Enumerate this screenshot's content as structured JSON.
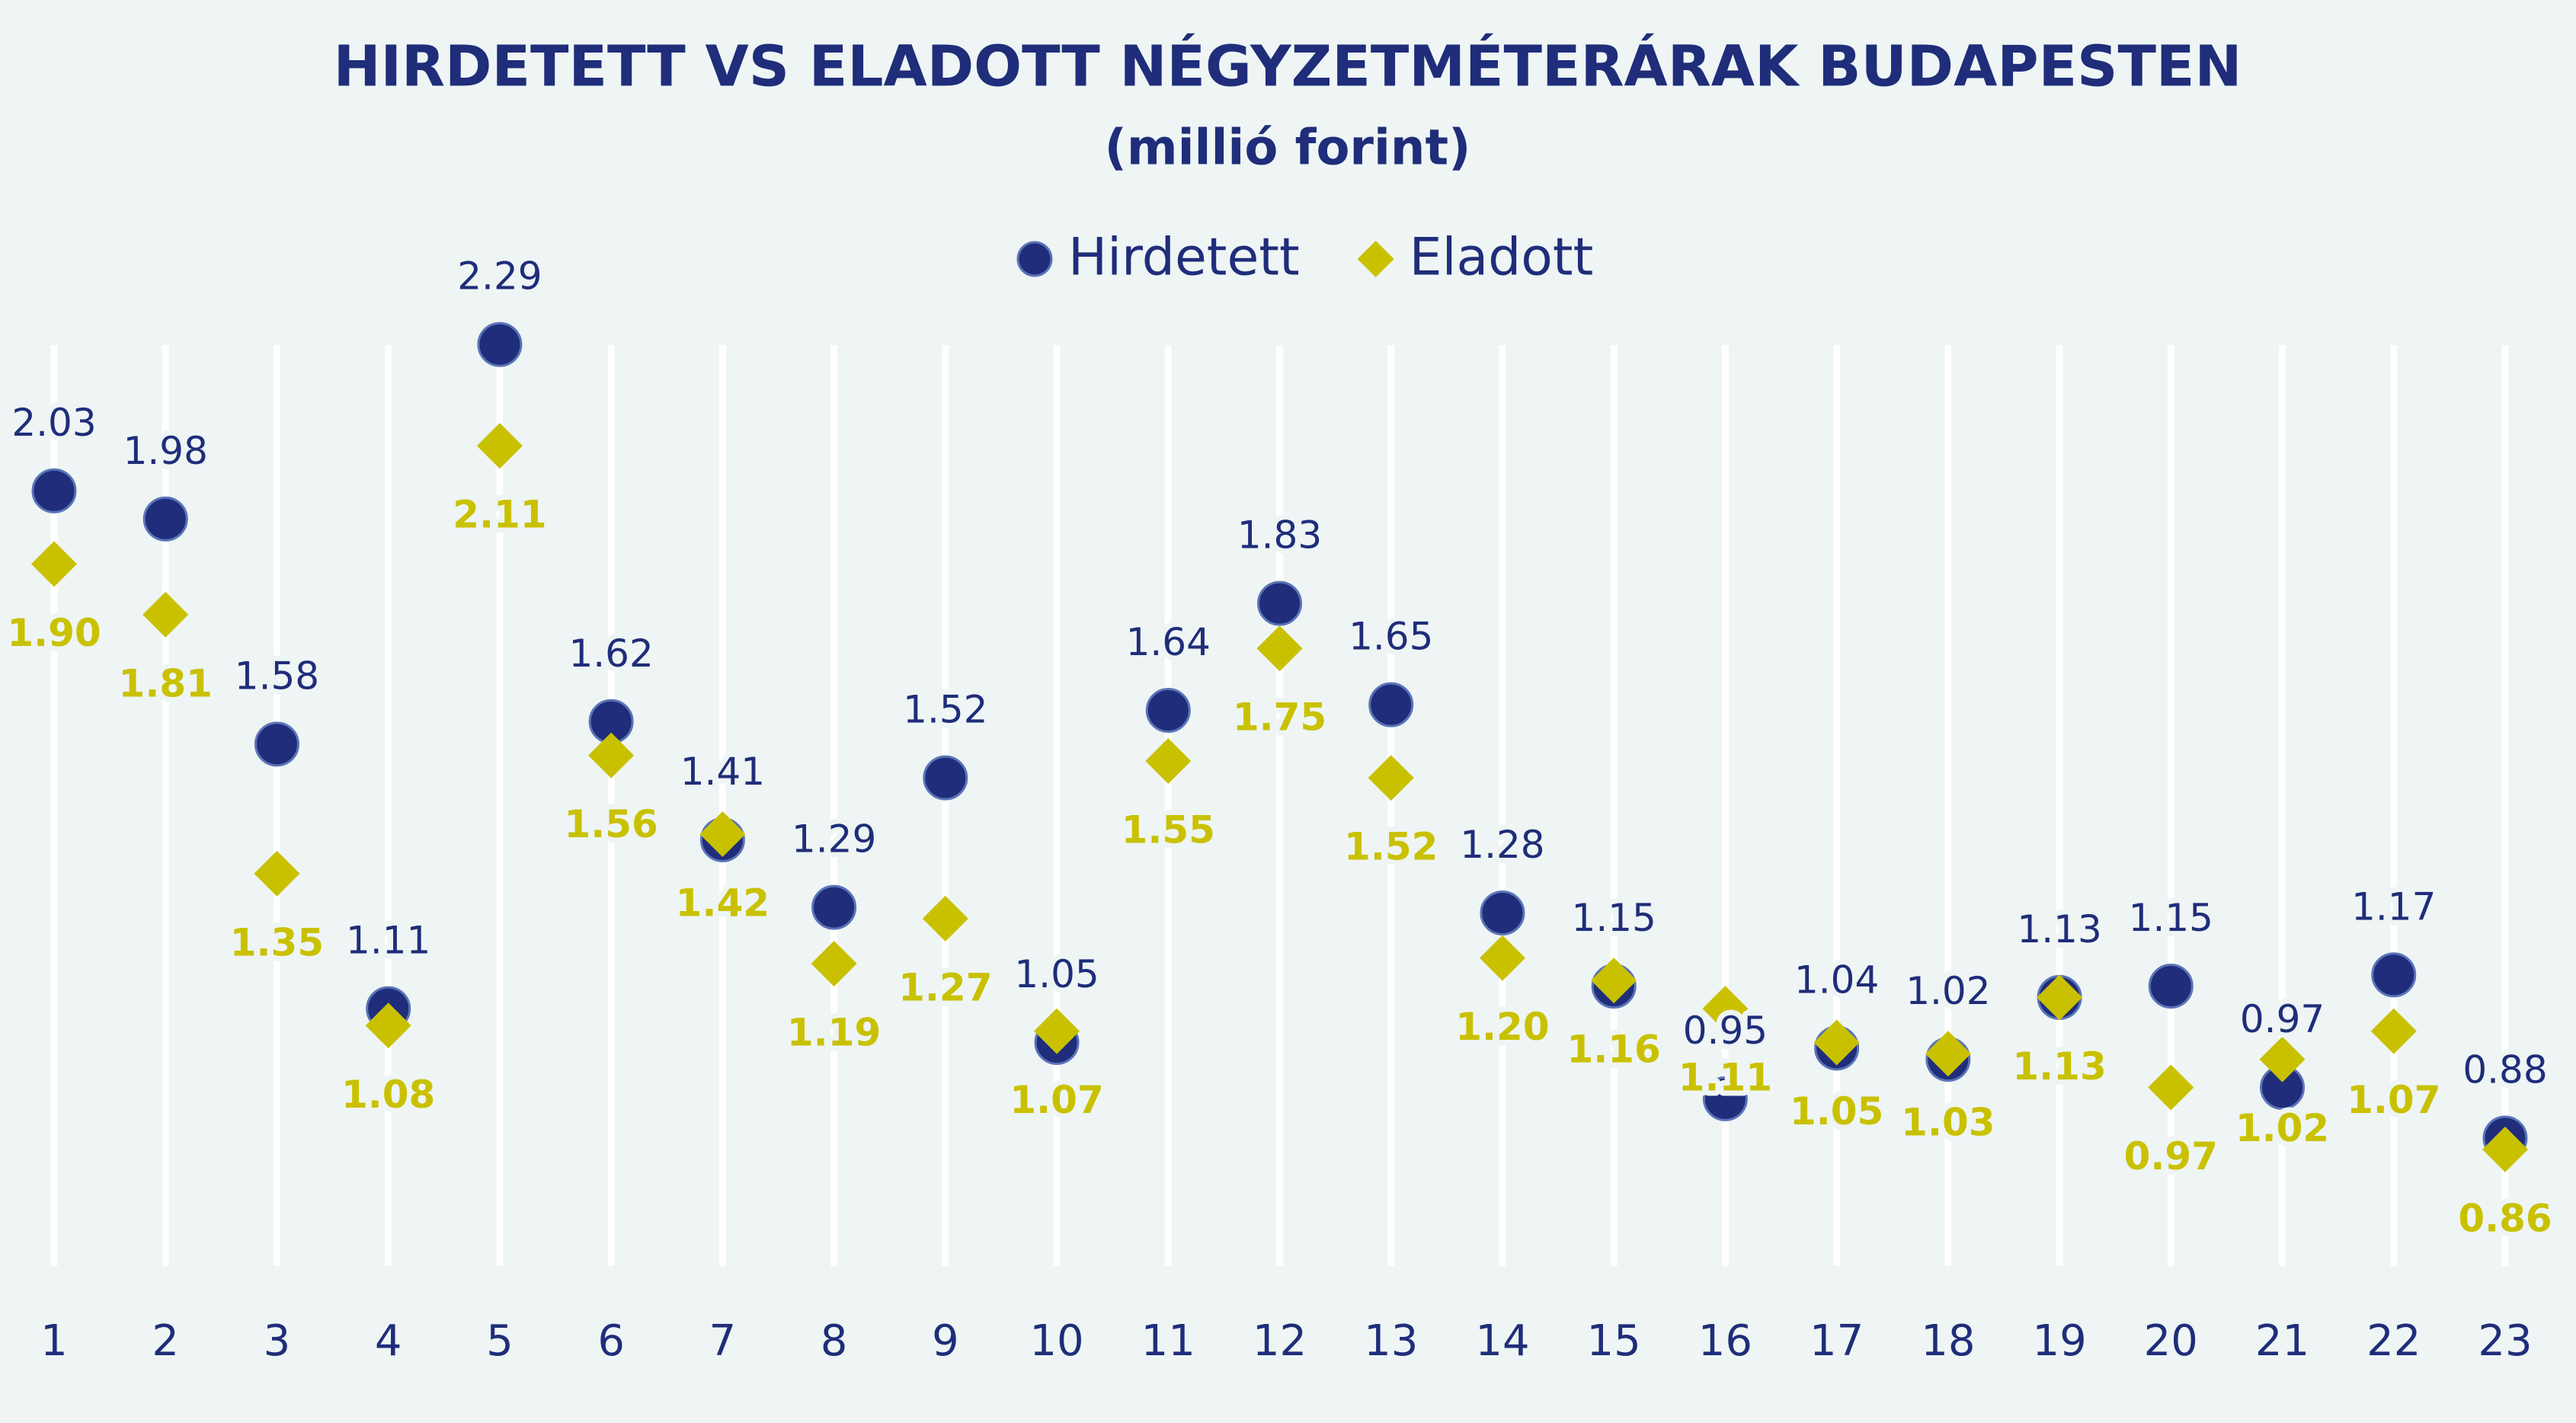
{
  "chart_data": {
    "type": "scatter",
    "title": "HIRDETETT VS ELADOTT NÉGYZETMÉTERÁRAK BUDAPESTEN",
    "subtitle": "(millió forint)",
    "categories": [
      "1",
      "2",
      "3",
      "4",
      "5",
      "6",
      "7",
      "8",
      "9",
      "10",
      "11",
      "12",
      "13",
      "14",
      "15",
      "16",
      "17",
      "18",
      "19",
      "20",
      "21",
      "22",
      "23"
    ],
    "ylim": [
      0.65,
      2.45
    ],
    "series": [
      {
        "name": "Hirdetett",
        "color": "#1f2d7a",
        "marker": "circle",
        "values": [
          2.03,
          1.98,
          1.58,
          1.11,
          2.29,
          1.62,
          1.41,
          1.29,
          1.52,
          1.05,
          1.64,
          1.83,
          1.65,
          1.28,
          1.15,
          0.95,
          1.04,
          1.02,
          1.13,
          1.15,
          0.97,
          1.17,
          0.88
        ]
      },
      {
        "name": "Eladott",
        "color": "#c9c100",
        "marker": "diamond",
        "values": [
          1.9,
          1.81,
          1.35,
          1.08,
          2.11,
          1.56,
          1.42,
          1.19,
          1.27,
          1.07,
          1.55,
          1.75,
          1.52,
          1.2,
          1.16,
          1.11,
          1.05,
          1.03,
          1.13,
          0.97,
          1.02,
          1.07,
          0.86
        ],
        "value_labels": [
          "1.90",
          "1.81",
          "1.35",
          "1.08",
          "2.11",
          "1.56",
          "1.42",
          "1.19",
          "1.27",
          "1.07",
          "1.55",
          "1.75",
          "1.52",
          "1.20",
          "1.16",
          "1.11",
          "1.05",
          "1.03",
          "1.13",
          "0.97",
          "1.02",
          "1.07",
          "0.86"
        ]
      }
    ],
    "legend": "top",
    "grid": true
  }
}
